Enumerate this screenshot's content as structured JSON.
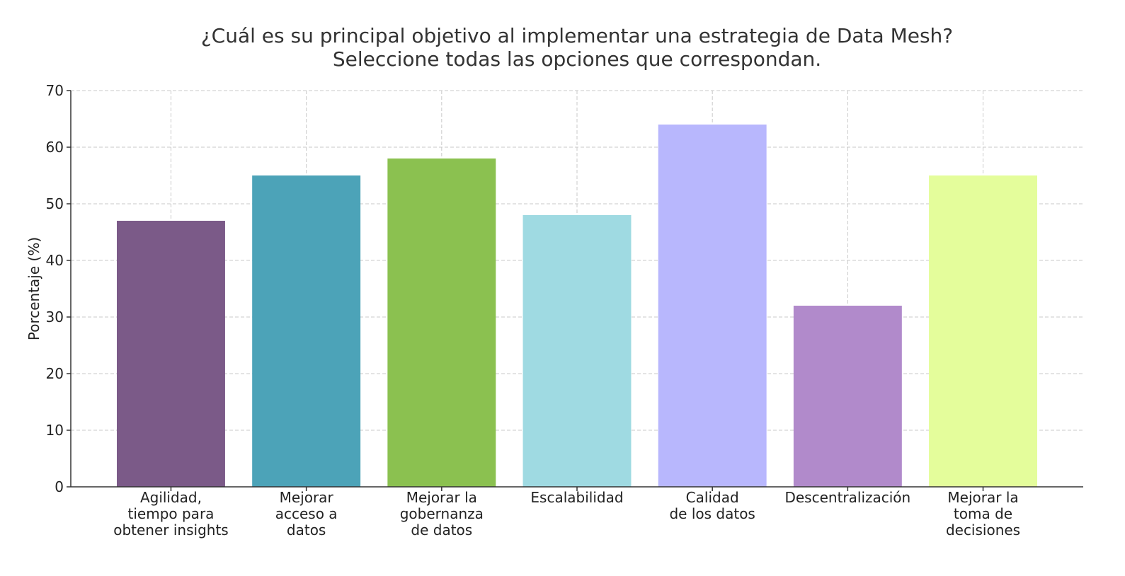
{
  "chart_data": {
    "type": "bar",
    "title": [
      "¿Cuál es su principal objetivo al implementar una estrategia de Data Mesh?",
      "Seleccione todas las opciones que correspondan."
    ],
    "ylabel": "Porcentaje (%)",
    "categories": [
      [
        "Agilidad,",
        "tiempo para",
        "obtener insights"
      ],
      [
        "Mejorar",
        "acceso a",
        "datos"
      ],
      [
        "Mejorar la",
        "gobernanza",
        "de datos"
      ],
      [
        "Escalabilidad"
      ],
      [
        "Calidad",
        "de los datos"
      ],
      [
        "Descentralización"
      ],
      [
        "Mejorar la",
        "toma de",
        "decisiones"
      ]
    ],
    "values": [
      47,
      55,
      58,
      48,
      64,
      32,
      55
    ],
    "colors": [
      "#7b5a88",
      "#4ca3b8",
      "#8bc150",
      "#9fdae2",
      "#b8b7fd",
      "#b18acb",
      "#e4fd9b"
    ],
    "ylim": [
      0,
      70
    ],
    "yticks": [
      0,
      10,
      20,
      30,
      40,
      50,
      60,
      70
    ],
    "grid": true
  }
}
